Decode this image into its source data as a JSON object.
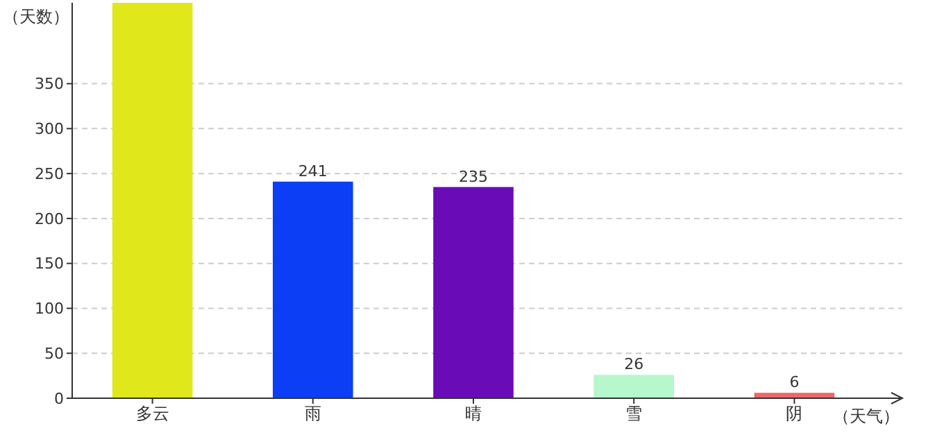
{
  "chart_data": {
    "type": "bar",
    "xlabel": "（天气）",
    "ylabel": "（天数）",
    "categories": [
      "多云",
      "雨",
      "晴",
      "雪",
      "阴"
    ],
    "values": [
      440,
      241,
      235,
      26,
      6
    ],
    "colors": [
      "#e0e81c",
      "#0b3ef5",
      "#6a0bb8",
      "#b6f7cc",
      "#f06666"
    ],
    "value_labels": [
      null,
      "241",
      "235",
      "26",
      "6"
    ],
    "ylim": [
      0,
      440
    ],
    "yticks": [
      0,
      50,
      100,
      150,
      200,
      250,
      300,
      350
    ],
    "grid": "y"
  }
}
